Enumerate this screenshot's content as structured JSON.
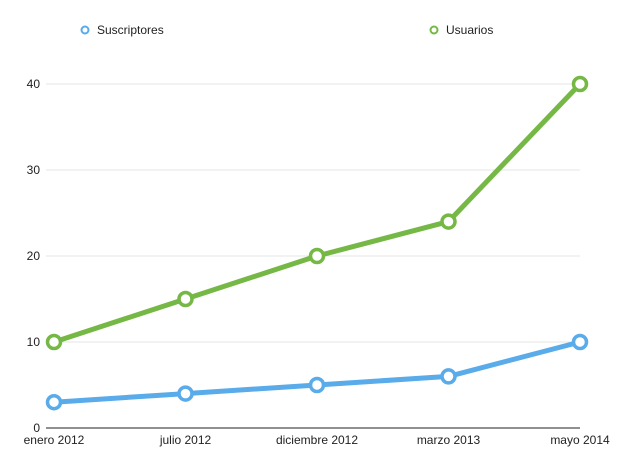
{
  "chart_data": {
    "type": "line",
    "categories": [
      "enero 2012",
      "julio 2012",
      "diciembre 2012",
      "marzo 2013",
      "mayo 2014"
    ],
    "series": [
      {
        "name": "Suscriptores",
        "values": [
          3,
          4,
          5,
          6,
          10
        ],
        "color": "#5aabea"
      },
      {
        "name": "Usuarios",
        "values": [
          10,
          15,
          20,
          24,
          40
        ],
        "color": "#76b846"
      }
    ],
    "yticks": [
      0,
      10,
      20,
      30,
      40
    ],
    "ylim": [
      0,
      40
    ],
    "grid": true,
    "legend_position": "top"
  }
}
